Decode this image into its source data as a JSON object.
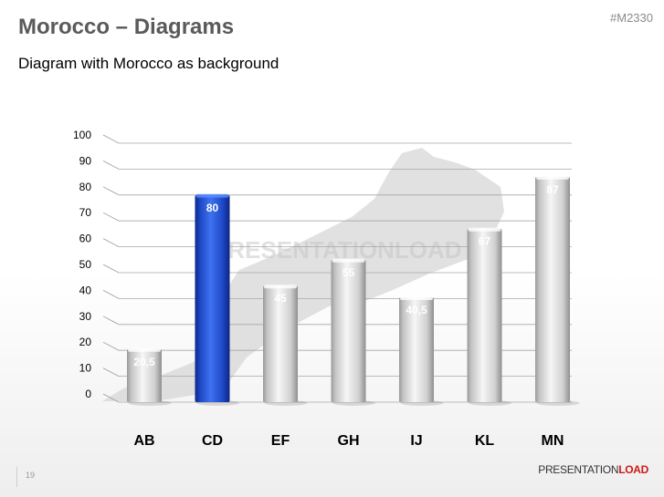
{
  "header": {
    "title": "Morocco – Diagrams",
    "subtitle": "Diagram with Morocco as background",
    "code": "#M2330"
  },
  "watermark": "PRESENTATIONLOAD",
  "footer": {
    "slide_number": "19",
    "brand_part1": "PRESENTATION",
    "brand_part2": "LOAD"
  },
  "colors": {
    "highlight_bar": "#1f4fd1",
    "normal_bar": "#d6d6d6",
    "map_silhouette": "#d4d4d4"
  },
  "chart_data": {
    "type": "bar",
    "categories": [
      "AB",
      "CD",
      "EF",
      "GH",
      "IJ",
      "KL",
      "MN"
    ],
    "values": [
      20.5,
      80,
      45,
      55,
      40.5,
      67,
      87
    ],
    "value_labels": [
      "20,5",
      "80",
      "45",
      "55",
      "40,5",
      "67",
      "87"
    ],
    "highlight_index": 1,
    "yticks": [
      "0",
      "10",
      "20",
      "30",
      "40",
      "50",
      "60",
      "70",
      "80",
      "90",
      "100"
    ],
    "ylim": [
      0,
      100
    ],
    "grid": true,
    "title": "",
    "xlabel": "",
    "ylabel": ""
  }
}
